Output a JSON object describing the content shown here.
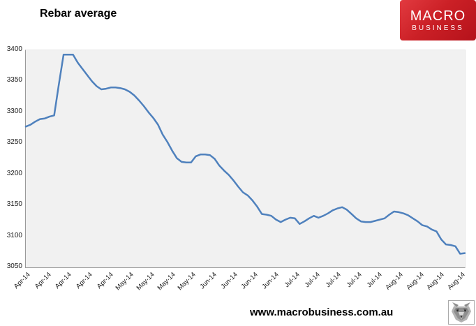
{
  "header": {
    "title": "Rebar average",
    "logo": {
      "line1": "MACRO",
      "line2": "BUSINESS",
      "bg_color": "#cb2026",
      "text_color": "#ffffff"
    }
  },
  "footer": {
    "url": "www.macrobusiness.com.au"
  },
  "chart_data": {
    "type": "line",
    "title": "Rebar average",
    "xlabel": "",
    "ylabel": "",
    "ylim": [
      3050,
      3400
    ],
    "ytick_step": 50,
    "grid": false,
    "legend": false,
    "line_color": "#4f81bd",
    "plot_bg": "#f1f1f1",
    "x_labels": [
      "Apr-14",
      "Apr-14",
      "Apr-14",
      "Apr-14",
      "Apr-14",
      "May-14",
      "May-14",
      "May-14",
      "May-14",
      "Jun-14",
      "Jun-14",
      "Jun-14",
      "Jun-14",
      "Jul-14",
      "Jul-14",
      "Jul-14",
      "Jul-14",
      "Jul-14",
      "Aug-14",
      "Aug-14",
      "Aug-14",
      "Aug-14"
    ],
    "values": [
      3277,
      3280,
      3285,
      3289,
      3290,
      3293,
      3295,
      3345,
      3393,
      3393,
      3393,
      3380,
      3370,
      3360,
      3350,
      3342,
      3337,
      3338,
      3340,
      3340,
      3339,
      3337,
      3333,
      3327,
      3319,
      3310,
      3300,
      3291,
      3280,
      3264,
      3252,
      3238,
      3226,
      3220,
      3219,
      3219,
      3229,
      3232,
      3232,
      3231,
      3225,
      3214,
      3206,
      3199,
      3190,
      3180,
      3171,
      3166,
      3158,
      3148,
      3136,
      3135,
      3133,
      3127,
      3123,
      3127,
      3130,
      3129,
      3120,
      3124,
      3129,
      3133,
      3130,
      3133,
      3137,
      3142,
      3145,
      3147,
      3143,
      3136,
      3129,
      3124,
      3123,
      3123,
      3125,
      3127,
      3129,
      3135,
      3140,
      3139,
      3137,
      3134,
      3129,
      3124,
      3118,
      3116,
      3111,
      3108,
      3095,
      3087,
      3086,
      3084,
      3072,
      3073
    ]
  }
}
